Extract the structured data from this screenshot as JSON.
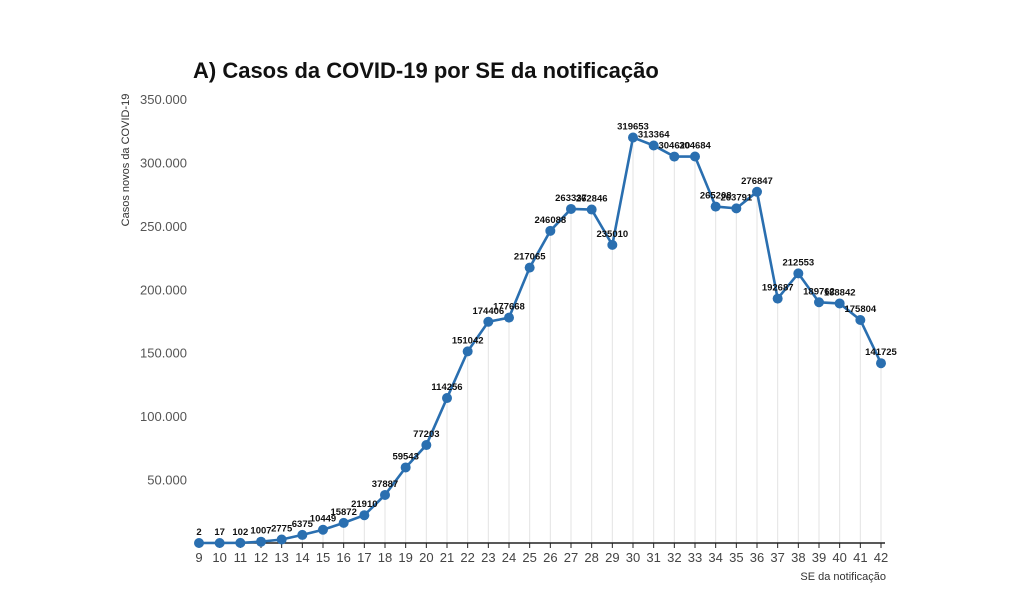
{
  "chart_data": {
    "type": "line",
    "title": "A) Casos da COVID-19 por SE da notificação",
    "xlabel": "SE da notificação",
    "ylabel": "Casos novos da COVID-19",
    "ylim": [
      0,
      350000
    ],
    "yticks": [
      50000,
      100000,
      150000,
      200000,
      250000,
      300000,
      350000
    ],
    "ytick_labels": [
      "50.000",
      "100.000",
      "150.000",
      "200.000",
      "250.000",
      "300.000",
      "350.000"
    ],
    "x": [
      9,
      10,
      11,
      12,
      13,
      14,
      15,
      16,
      17,
      18,
      19,
      20,
      21,
      22,
      23,
      24,
      25,
      26,
      27,
      28,
      29,
      30,
      31,
      32,
      33,
      34,
      35,
      36,
      37,
      38,
      39,
      40,
      41,
      42
    ],
    "values": [
      2,
      17,
      102,
      1007,
      2775,
      6375,
      10449,
      15872,
      21910,
      37887,
      59543,
      77203,
      114256,
      151042,
      174406,
      177668,
      217065,
      246088,
      263337,
      262846,
      235010,
      319653,
      313364,
      304620,
      304684,
      265208,
      263791,
      276847,
      192687,
      212553,
      189762,
      188842,
      175804,
      141725
    ],
    "data_labels": [
      "2",
      "17",
      "102",
      "1007",
      "2775",
      "6375",
      "10449",
      "15872",
      "21910",
      "37887",
      "59543",
      "77203",
      "114256",
      "151042",
      "174406",
      "177668",
      "217065",
      "246088",
      "263337",
      "262846",
      "235010",
      "319653",
      "313364",
      "304620",
      "304684",
      "265208",
      "263791",
      "276847",
      "192687",
      "212553",
      "189762",
      "188842",
      "175804",
      "141725"
    ],
    "grid": "vertical-only",
    "legend": "none",
    "colors": {
      "line": "#2a6fb0",
      "marker": "#2a6fb0",
      "grid": "#e3e3e3",
      "axis": "#222222"
    }
  }
}
